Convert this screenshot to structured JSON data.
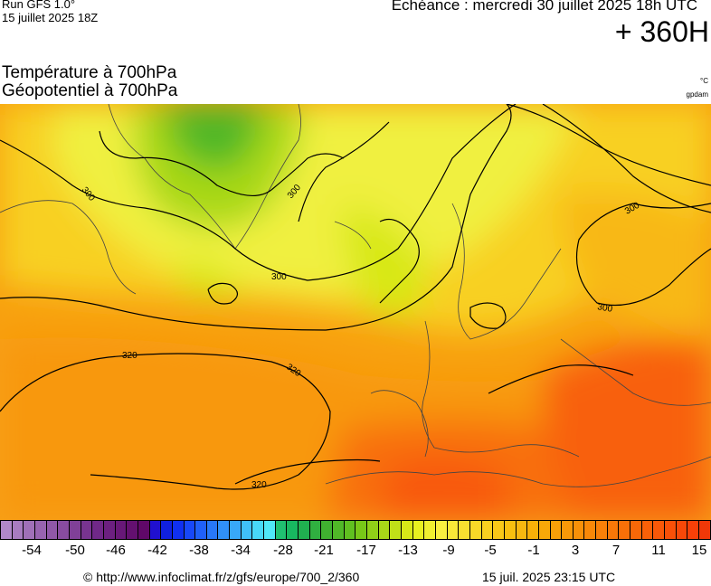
{
  "header": {
    "run": "Run GFS 1.0°",
    "run_date": "15 juillet 2025 18Z",
    "echeance": "Echéance : mercredi 30 juillet 2025 18h UTC",
    "lead_time": "+ 360H",
    "title_temp": "Température à 700hPa",
    "title_geo": "Géopotentiel à 700hPa",
    "unit_temp": "°C",
    "unit_geo": "gpdam"
  },
  "map": {
    "contour_labels": [
      "300",
      "300",
      "300",
      "300",
      "300",
      "320",
      "320",
      "320"
    ]
  },
  "colorbar": {
    "colors": [
      "#b088c8",
      "#a87cc0",
      "#a070b8",
      "#9864b0",
      "#9058a8",
      "#884ca0",
      "#804098",
      "#783490",
      "#702888",
      "#6c2080",
      "#681878",
      "#641070",
      "#600868",
      "#2010d0",
      "#1020e0",
      "#1030f0",
      "#1848f8",
      "#2060f8",
      "#2878f8",
      "#3090f8",
      "#38a8f8",
      "#40c0f8",
      "#48d8f8",
      "#50e8f8",
      "#20c070",
      "#18b860",
      "#20b050",
      "#30b040",
      "#40b030",
      "#50b828",
      "#60c020",
      "#78c818",
      "#90d018",
      "#a8d818",
      "#c0e018",
      "#d8e818",
      "#e8f020",
      "#f0f030",
      "#f8f040",
      "#f8e838",
      "#f8e030",
      "#f8d828",
      "#f8d020",
      "#f8c818",
      "#f8c010",
      "#f8b810",
      "#f8b008",
      "#f8a808",
      "#f8a008",
      "#f89808",
      "#f89008",
      "#f88808",
      "#f88008",
      "#f87808",
      "#f87008",
      "#f86808",
      "#f86008",
      "#f85808",
      "#f85008",
      "#f84808",
      "#f84008",
      "#f03808"
    ],
    "ticks": [
      "-54",
      "-50",
      "-46",
      "-42",
      "-38",
      "-34",
      "-28",
      "-21",
      "-17",
      "-13",
      "-9",
      "-5",
      "-1",
      "3",
      "7",
      "11",
      "15"
    ]
  },
  "footer": {
    "credit": "© http://www.infoclimat.fr/z/gfs/europe/700_2/360",
    "issued": "15 juil. 2025 23:15 UTC"
  }
}
